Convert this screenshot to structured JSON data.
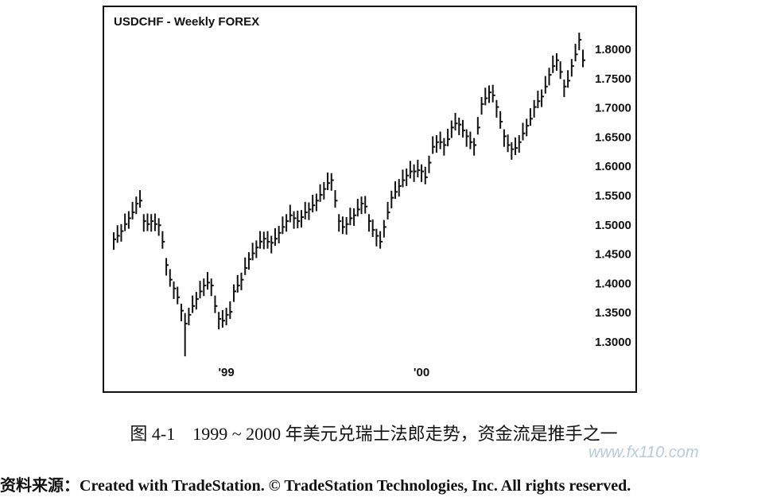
{
  "chart_data": {
    "type": "ohlc",
    "title": "USDCHF - Weekly FOREX",
    "categories": [
      null,
      null,
      null,
      null,
      null,
      null,
      null,
      null,
      null,
      null,
      null,
      null,
      null,
      null,
      null,
      null,
      null,
      null,
      null,
      null,
      null,
      null,
      null,
      null,
      null,
      null,
      null,
      null,
      null,
      null,
      "'99",
      null,
      null,
      null,
      null,
      null,
      null,
      null,
      null,
      null,
      null,
      null,
      null,
      null,
      null,
      null,
      null,
      null,
      null,
      null,
      null,
      null,
      null,
      null,
      null,
      null,
      null,
      null,
      null,
      null,
      null,
      null,
      null,
      null,
      null,
      null,
      null,
      null,
      null,
      null,
      null,
      null,
      null,
      null,
      null,
      null,
      null,
      null,
      null,
      null,
      null,
      null,
      "'00",
      null,
      null,
      null,
      null,
      null,
      null,
      null,
      null,
      null,
      null,
      null,
      null,
      null,
      null,
      null,
      null,
      null,
      null,
      null,
      null,
      null,
      null,
      null,
      null,
      null,
      null,
      null,
      null,
      null,
      null,
      null,
      null,
      null,
      null,
      null,
      null,
      null,
      null,
      null,
      null,
      null,
      null,
      null
    ],
    "high": [
      1.486,
      1.498,
      1.5,
      1.518,
      1.522,
      1.538,
      1.547,
      1.558,
      1.517,
      1.518,
      1.517,
      1.518,
      1.51,
      1.488,
      1.442,
      1.423,
      1.402,
      1.393,
      1.364,
      1.348,
      1.357,
      1.378,
      1.384,
      1.403,
      1.407,
      1.418,
      1.407,
      1.378,
      1.35,
      1.353,
      1.357,
      1.368,
      1.397,
      1.413,
      1.417,
      1.443,
      1.452,
      1.468,
      1.472,
      1.488,
      1.487,
      1.488,
      1.48,
      1.493,
      1.497,
      1.513,
      1.517,
      1.533,
      1.522,
      1.523,
      1.524,
      1.538,
      1.537,
      1.55,
      1.552,
      1.568,
      1.572,
      1.588,
      1.587,
      1.558,
      1.517,
      1.513,
      1.512,
      1.528,
      1.527,
      1.543,
      1.547,
      1.548,
      1.517,
      1.508,
      1.492,
      1.488,
      1.507,
      1.538,
      1.557,
      1.573,
      1.577,
      1.593,
      1.595,
      1.608,
      1.602,
      1.61,
      1.602,
      1.598,
      1.617,
      1.65,
      1.652,
      1.658,
      1.647,
      1.663,
      1.677,
      1.69,
      1.682,
      1.678,
      1.662,
      1.658,
      1.647,
      1.683,
      1.717,
      1.733,
      1.737,
      1.738,
      1.712,
      1.693,
      1.662,
      1.653,
      1.64,
      1.648,
      1.652,
      1.673,
      1.68,
      1.698,
      1.712,
      1.728,
      1.73,
      1.753,
      1.767,
      1.788,
      1.792,
      1.778,
      1.747,
      1.763,
      1.782,
      1.808,
      1.827,
      1.798
    ],
    "low": [
      1.456,
      1.468,
      1.47,
      1.488,
      1.492,
      1.508,
      1.517,
      1.528,
      1.487,
      1.488,
      1.487,
      1.488,
      1.48,
      1.458,
      1.412,
      1.393,
      1.372,
      1.363,
      1.334,
      1.274,
      1.327,
      1.348,
      1.354,
      1.373,
      1.377,
      1.388,
      1.377,
      1.348,
      1.32,
      1.323,
      1.327,
      1.338,
      1.367,
      1.383,
      1.387,
      1.413,
      1.422,
      1.438,
      1.442,
      1.458,
      1.457,
      1.458,
      1.45,
      1.463,
      1.467,
      1.483,
      1.487,
      1.503,
      1.492,
      1.493,
      1.494,
      1.508,
      1.507,
      1.52,
      1.522,
      1.538,
      1.542,
      1.558,
      1.557,
      1.528,
      1.487,
      1.483,
      1.482,
      1.498,
      1.497,
      1.513,
      1.517,
      1.518,
      1.487,
      1.478,
      1.462,
      1.458,
      1.477,
      1.508,
      1.527,
      1.543,
      1.547,
      1.563,
      1.565,
      1.578,
      1.572,
      1.58,
      1.572,
      1.568,
      1.587,
      1.62,
      1.622,
      1.628,
      1.617,
      1.633,
      1.647,
      1.66,
      1.652,
      1.648,
      1.632,
      1.628,
      1.617,
      1.653,
      1.687,
      1.703,
      1.707,
      1.708,
      1.682,
      1.663,
      1.632,
      1.623,
      1.61,
      1.618,
      1.622,
      1.643,
      1.65,
      1.668,
      1.682,
      1.698,
      1.7,
      1.723,
      1.737,
      1.758,
      1.762,
      1.748,
      1.717,
      1.733,
      1.752,
      1.778,
      1.797,
      1.768
    ],
    "close": [
      1.474,
      1.48,
      1.488,
      1.5,
      1.51,
      1.52,
      1.535,
      1.54,
      1.505,
      1.5,
      1.505,
      1.5,
      1.498,
      1.47,
      1.43,
      1.405,
      1.39,
      1.375,
      1.352,
      1.33,
      1.345,
      1.36,
      1.372,
      1.385,
      1.395,
      1.4,
      1.395,
      1.36,
      1.338,
      1.335,
      1.345,
      1.35,
      1.385,
      1.395,
      1.405,
      1.425,
      1.44,
      1.45,
      1.46,
      1.47,
      1.475,
      1.47,
      1.468,
      1.475,
      1.485,
      1.495,
      1.505,
      1.515,
      1.51,
      1.505,
      1.512,
      1.52,
      1.525,
      1.532,
      1.54,
      1.55,
      1.56,
      1.57,
      1.575,
      1.54,
      1.505,
      1.495,
      1.5,
      1.51,
      1.515,
      1.525,
      1.535,
      1.53,
      1.505,
      1.49,
      1.48,
      1.47,
      1.495,
      1.52,
      1.545,
      1.555,
      1.565,
      1.575,
      1.583,
      1.59,
      1.59,
      1.592,
      1.59,
      1.58,
      1.605,
      1.632,
      1.64,
      1.64,
      1.635,
      1.645,
      1.665,
      1.672,
      1.67,
      1.66,
      1.65,
      1.64,
      1.635,
      1.665,
      1.705,
      1.715,
      1.725,
      1.72,
      1.7,
      1.675,
      1.65,
      1.635,
      1.628,
      1.63,
      1.64,
      1.655,
      1.668,
      1.68,
      1.7,
      1.71,
      1.718,
      1.735,
      1.755,
      1.77,
      1.78,
      1.76,
      1.735,
      1.745,
      1.77,
      1.79,
      1.815,
      1.78
    ],
    "color": "#111111",
    "ylim": [
      1.213,
      1.872
    ],
    "yticks": [
      {
        "value": 1.3,
        "label": "1.3000"
      },
      {
        "value": 1.35,
        "label": "1.3500"
      },
      {
        "value": 1.4,
        "label": "1.4000"
      },
      {
        "value": 1.45,
        "label": "1.4500"
      },
      {
        "value": 1.5,
        "label": "1.5000"
      },
      {
        "value": 1.55,
        "label": "1.5500"
      },
      {
        "value": 1.6,
        "label": "1.6000"
      },
      {
        "value": 1.65,
        "label": "1.6500"
      },
      {
        "value": 1.7,
        "label": "1.7000"
      },
      {
        "value": 1.75,
        "label": "1.7500"
      },
      {
        "value": 1.8,
        "label": "1.8000"
      }
    ],
    "grid": false
  },
  "caption": "图 4-1　1999 ~ 2000 年美元兑瑞士法郎走势，资金流是推手之一",
  "watermark": "www.fx110.com",
  "source": "资料来源：Created with TradeStation. © TradeStation Technologies, Inc. All rights reserved."
}
